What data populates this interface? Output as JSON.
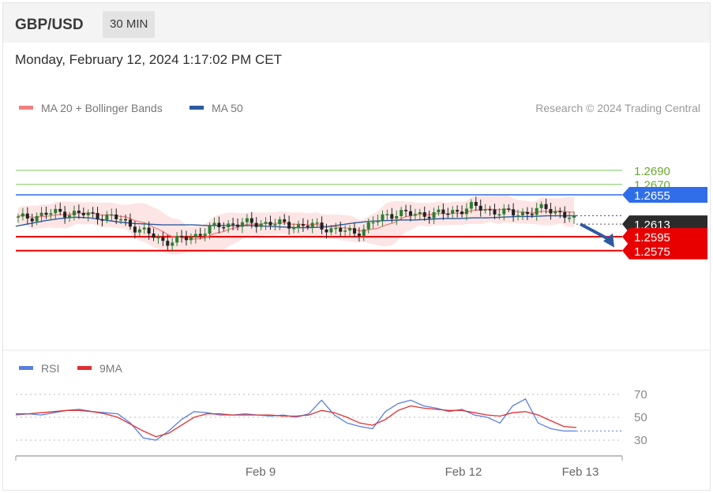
{
  "header": {
    "symbol": "GBP/USD",
    "timeframe": "30 MIN"
  },
  "timestamp": "Monday, February 12, 2024 1:17:02 PM CET",
  "legend": {
    "ma20_label": "MA 20 + Bollinger Bands",
    "ma50_label": "MA 50",
    "credit": "Research © 2024 Trading Central"
  },
  "colors": {
    "ma20": "#f08080",
    "ma50": "#2c5aa0",
    "bb_fill": "#fde0e0",
    "support": "#e80000",
    "resistance_blue": "#2f6ee8",
    "level_green": "#6aa832",
    "green_line": "#a8d890",
    "candle_up": "#2e7d32",
    "candle_down": "#222222",
    "last_price_bg": "#2b2b2b",
    "rsi": "#5a7fe0",
    "rsi_ma": "#e03030",
    "arrow": "#2c5aa0"
  },
  "chart_data": [
    {
      "type": "candlestick",
      "title": "GBP/USD",
      "ylim": [
        1.2565,
        1.2705
      ],
      "levels": [
        {
          "value": 1.269,
          "label": "1.2690",
          "kind": "green-line"
        },
        {
          "value": 1.267,
          "label": "1.2670",
          "kind": "green-line"
        },
        {
          "value": 1.2655,
          "label": "1.2655",
          "kind": "resistance"
        },
        {
          "value": 1.2613,
          "label": "1.2613",
          "kind": "last-price"
        },
        {
          "value": 1.2595,
          "label": "1.2595",
          "kind": "support"
        },
        {
          "value": 1.2575,
          "label": "1.2575",
          "kind": "support"
        }
      ],
      "forecast_arrow": {
        "from": 1.2613,
        "to": 1.2575
      },
      "ohlc_anchor_closes": [
        1.2621,
        1.2624,
        1.2628,
        1.263,
        1.2628,
        1.2626,
        1.2624,
        1.262,
        1.2608,
        1.2598,
        1.2588,
        1.259,
        1.2596,
        1.2606,
        1.2612,
        1.2614,
        1.2614,
        1.2615,
        1.2613,
        1.2611,
        1.2611,
        1.2608,
        1.2604,
        1.26,
        1.2612,
        1.2624,
        1.263,
        1.2626,
        1.2628,
        1.2628,
        1.2632,
        1.2638,
        1.2634,
        1.263,
        1.2628,
        1.263,
        1.2636,
        1.263,
        1.2618
      ],
      "ma50": [
        1.261,
        1.2614,
        1.2618,
        1.2621,
        1.2623,
        1.2622,
        1.2619,
        1.2616,
        1.2614,
        1.2613,
        1.2612,
        1.2612,
        1.2612,
        1.2611,
        1.2611,
        1.2611,
        1.2611,
        1.261,
        1.2609,
        1.2608,
        1.2608,
        1.2609,
        1.2612,
        1.2615,
        1.2617,
        1.2618,
        1.2619,
        1.2619,
        1.262,
        1.2621,
        1.2621,
        1.2622,
        1.2622,
        1.2623,
        1.2624,
        1.2624,
        1.2625,
        1.2625,
        1.2625
      ]
    },
    {
      "type": "line",
      "title": "RSI",
      "series": [
        {
          "name": "RSI",
          "values": [
            52,
            53,
            52,
            54,
            56,
            57,
            55,
            54,
            53,
            45,
            32,
            30,
            38,
            48,
            55,
            54,
            52,
            52,
            53,
            52,
            51,
            52,
            50,
            53,
            65,
            52,
            45,
            42,
            40,
            55,
            62,
            65,
            60,
            58,
            55,
            57,
            52,
            50,
            45,
            60,
            66,
            45,
            40,
            38,
            38
          ]
        },
        {
          "name": "9MA",
          "values": [
            53,
            53,
            54,
            55,
            56,
            56,
            55,
            53,
            50,
            44,
            38,
            33,
            36,
            43,
            50,
            53,
            53,
            52,
            52,
            52,
            52,
            51,
            51,
            52,
            56,
            54,
            50,
            45,
            43,
            48,
            56,
            60,
            58,
            57,
            56,
            56,
            54,
            52,
            51,
            54,
            55,
            52,
            47,
            42,
            41
          ]
        }
      ],
      "ylim": [
        20,
        80
      ],
      "yticks": [
        "70",
        "50",
        "30"
      ],
      "xticks": [
        "Feb 9",
        "Feb 12",
        "Feb 13"
      ]
    }
  ]
}
